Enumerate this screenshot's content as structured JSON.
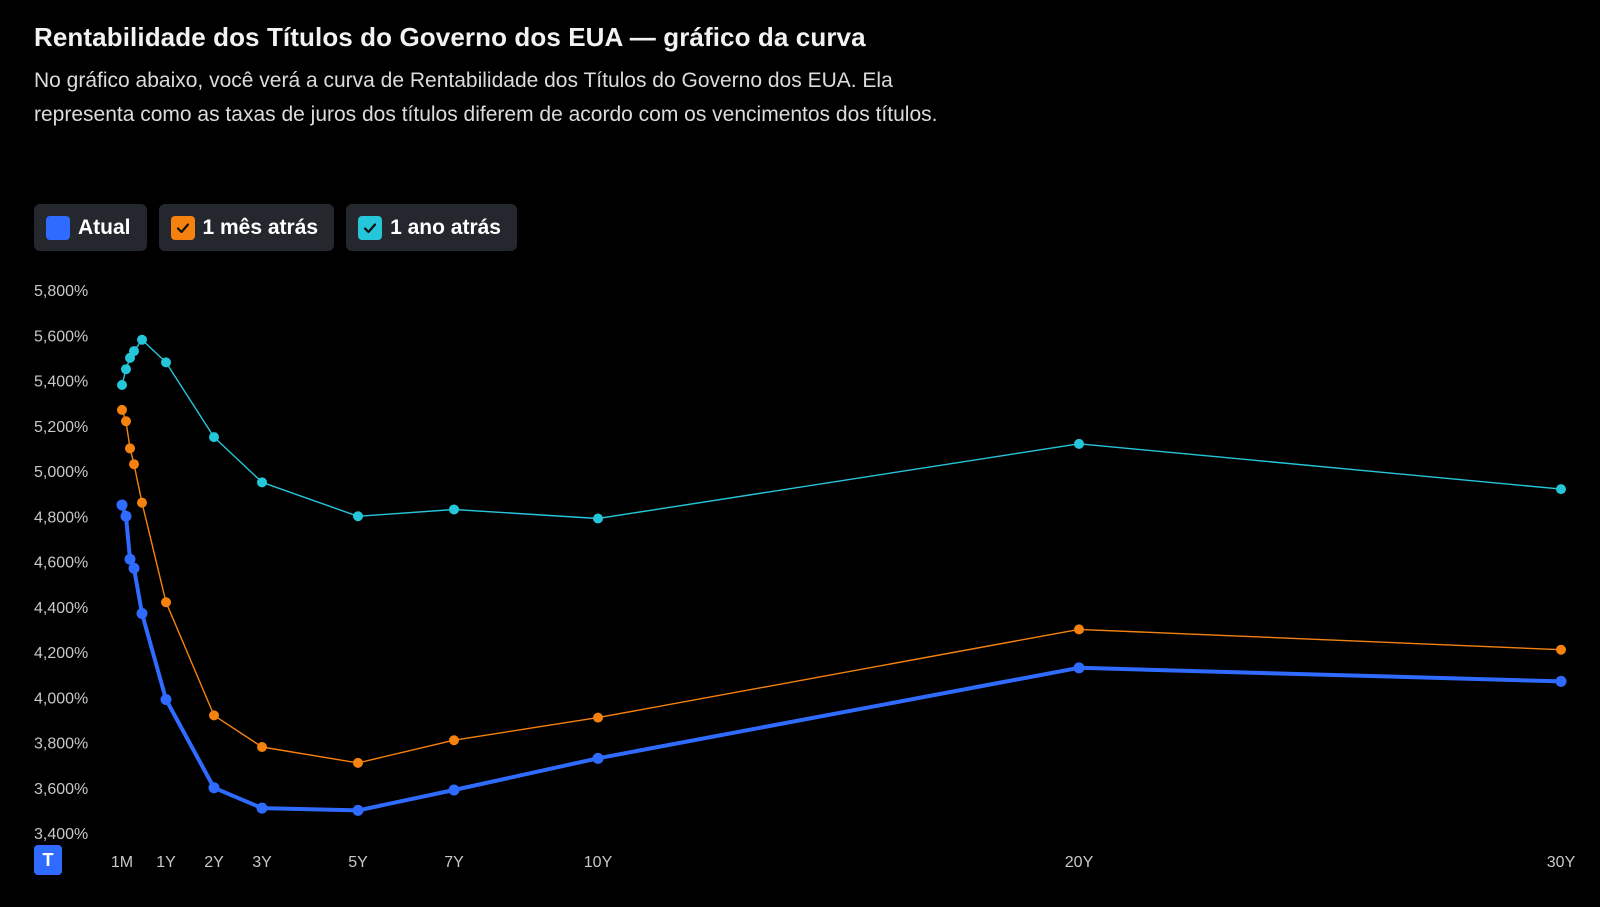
{
  "header": {
    "title": "Rentabilidade dos Títulos do Governo dos EUA — gráfico da curva",
    "description": "No gráfico abaixo, você verá a curva de Rentabilidade dos Títulos do Governo dos EUA. Ela representa como as taxas de juros dos títulos diferem de acordo com os vencimentos dos títulos."
  },
  "legend": [
    {
      "label": "Atual",
      "color": "#2f6bff",
      "checked": false
    },
    {
      "label": "1 mês atrás",
      "color": "#f5820f",
      "checked": true
    },
    {
      "label": "1 ano atrás",
      "color": "#26c6da",
      "checked": true
    }
  ],
  "logo": {
    "text": "T",
    "color": "#2f6bff"
  },
  "chart_data": {
    "type": "line",
    "title": "",
    "xlabel": "",
    "ylabel": "",
    "ylim": [
      3.4,
      5.8
    ],
    "y_ticks": [
      "3,400%",
      "3,600%",
      "3,800%",
      "4,000%",
      "4,200%",
      "4,400%",
      "4,600%",
      "4,800%",
      "5,000%",
      "5,200%",
      "5,400%",
      "5,600%",
      "5,800%"
    ],
    "y_tick_values": [
      3.4,
      3.6,
      3.8,
      4.0,
      4.2,
      4.4,
      4.6,
      4.8,
      5.0,
      5.2,
      5.4,
      5.6,
      5.8
    ],
    "x_ticks": [
      "1M",
      "1Y",
      "2Y",
      "3Y",
      "5Y",
      "7Y",
      "10Y",
      "20Y",
      "30Y"
    ],
    "x_tick_values": [
      0.0833,
      1,
      2,
      3,
      5,
      7,
      10,
      20,
      30
    ],
    "x": [
      0.0833,
      0.1667,
      0.25,
      0.3333,
      0.5,
      1,
      2,
      3,
      5,
      7,
      10,
      20,
      30
    ],
    "grid": false,
    "legend_position": "top-left",
    "series": [
      {
        "name": "Atual",
        "color": "#2f6bff",
        "width": "thick",
        "values": [
          4.85,
          4.8,
          4.61,
          4.57,
          4.37,
          3.99,
          3.6,
          3.51,
          3.5,
          3.59,
          3.73,
          4.13,
          4.07
        ]
      },
      {
        "name": "1 mês atrás",
        "color": "#f5820f",
        "width": "thin",
        "values": [
          5.27,
          5.22,
          5.1,
          5.03,
          4.86,
          4.42,
          3.92,
          3.78,
          3.71,
          3.81,
          3.91,
          4.3,
          4.21
        ]
      },
      {
        "name": "1 ano atrás",
        "color": "#26c6da",
        "width": "thin",
        "values": [
          5.38,
          5.45,
          5.5,
          5.53,
          5.58,
          5.48,
          5.15,
          4.95,
          4.8,
          4.83,
          4.79,
          5.12,
          4.92
        ]
      }
    ]
  }
}
